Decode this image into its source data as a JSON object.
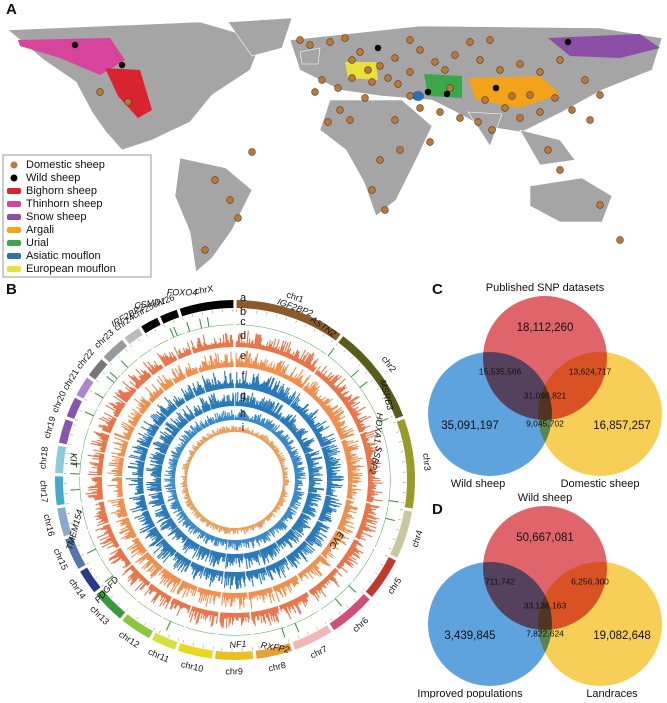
{
  "panels": {
    "a": "A",
    "b": "B",
    "c": "C",
    "d": "D"
  },
  "map": {
    "legend": [
      "Domestic sheep",
      "Wild sheep",
      "Bighorn sheep",
      "Thinhorn sheep",
      "Snow sheep",
      "Argali",
      "Urial",
      "Asiatic mouflon",
      "European mouflon"
    ]
  },
  "circos": {
    "chromosomes": [
      "chr1",
      "chr2",
      "chr3",
      "chr4",
      "chr5",
      "chr6",
      "chr7",
      "chr8",
      "chr9",
      "chr10",
      "chr11",
      "chr12",
      "chr13",
      "chr14",
      "chr15",
      "chr16",
      "chr17",
      "chr18",
      "chr19",
      "chr20",
      "chr21",
      "chr22",
      "chr23",
      "chr24",
      "chr25",
      "chr26",
      "chrX"
    ],
    "tracks": [
      "a",
      "b",
      "c",
      "d",
      "e",
      "f",
      "g",
      "h",
      "i"
    ],
    "genes": [
      "FOXO4",
      "CSMD1",
      "IRF2BP2",
      "IGF2BP2",
      "ASTN2",
      "MSRB3",
      "HOXA1",
      "SSBP2",
      "EVC",
      "RXFP2",
      "NF1",
      "PDGFD",
      "TMEM154",
      "KIT"
    ]
  },
  "venn_c": {
    "sets": [
      "Published SNP datasets",
      "Wild sheep",
      "Domestic sheep"
    ],
    "regions": {
      "a": "18,112,260",
      "ab": "15,535,566",
      "ac": "13,624,717",
      "abc": "31,098,821",
      "b": "35,091,197",
      "bc": "9,045,702",
      "c": "16,857,257"
    }
  },
  "venn_d": {
    "sets": [
      "Wild sheep",
      "Improved populations",
      "Landraces"
    ],
    "regions": {
      "a": "50,667,081",
      "ab": "711,742",
      "ac": "6,256,300",
      "abc": "33,136,163",
      "b": "3,439,845",
      "bc": "7,822,624",
      "c": "19,082,648"
    }
  }
}
